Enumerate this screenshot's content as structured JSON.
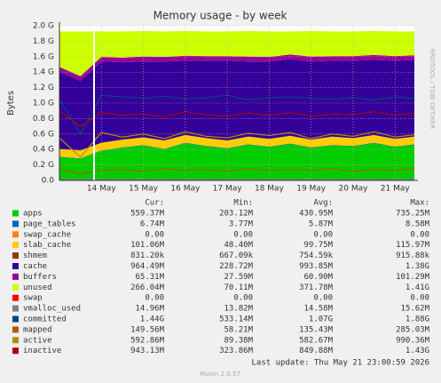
{
  "chart_data": {
    "type": "area",
    "title": "Memory usage - by week",
    "y_label": "Bytes",
    "side_label": "RRDTOOL / TOBI OETIKER",
    "x": [
      13.5,
      14,
      14.5,
      15,
      15.5,
      16,
      16.5,
      17,
      17.5,
      18,
      18.5,
      19,
      19.5,
      20,
      20.5,
      21,
      21.5,
      21.96
    ],
    "xlim": [
      13.5,
      21.96
    ],
    "xticks": [
      {
        "value": 14.5,
        "label": "14 May"
      },
      {
        "value": 15.5,
        "label": "15 May"
      },
      {
        "value": 16.5,
        "label": "16 May"
      },
      {
        "value": 17.5,
        "label": "17 May"
      },
      {
        "value": 18.5,
        "label": "18 May"
      },
      {
        "value": 19.5,
        "label": "19 May"
      },
      {
        "value": 20.5,
        "label": "20 May"
      },
      {
        "value": 21.5,
        "label": "21 May"
      }
    ],
    "ylim": [
      0,
      2.0
    ],
    "yticks": [
      {
        "value": 0,
        "label": "0.0"
      },
      {
        "value": 0.2,
        "label": "0.2 G"
      },
      {
        "value": 0.4,
        "label": "0.4 G"
      },
      {
        "value": 0.6,
        "label": "0.6 G"
      },
      {
        "value": 0.8,
        "label": "0.8 G"
      },
      {
        "value": 1.0,
        "label": "1.0 G"
      },
      {
        "value": 1.2,
        "label": "1.2 G"
      },
      {
        "value": 1.4,
        "label": "1.4 G"
      },
      {
        "value": 1.6,
        "label": "1.6 G"
      },
      {
        "value": 1.8,
        "label": "1.8 G"
      },
      {
        "value": 2.0,
        "label": "2.0 G"
      }
    ],
    "grid": true,
    "legend_headers": [
      "Cur:",
      "Min:",
      "Avg:",
      "Max:"
    ],
    "series": [
      {
        "name": "apps",
        "color": "#00CC00",
        "style": "stack",
        "values": [
          0.3,
          0.28,
          0.38,
          0.42,
          0.45,
          0.4,
          0.48,
          0.44,
          0.41,
          0.46,
          0.43,
          0.47,
          0.42,
          0.45,
          0.44,
          0.48,
          0.43,
          0.46
        ],
        "stats": [
          "559.37M",
          "203.12M",
          "430.95M",
          "735.25M"
        ]
      },
      {
        "name": "page_tables",
        "color": "#0066B3",
        "style": "stack",
        "values": [
          0.0065,
          0.0065,
          0.0065,
          0.0065,
          0.0065,
          0.0065,
          0.0065,
          0.0065,
          0.0065,
          0.0065,
          0.0065,
          0.0065,
          0.0065,
          0.0065,
          0.0065,
          0.0065,
          0.0065,
          0.0065
        ],
        "stats": [
          "6.74M",
          "3.77M",
          "5.87M",
          "8.58M"
        ]
      },
      {
        "name": "swap_cache",
        "color": "#FF8000",
        "style": "stack",
        "values": [
          0,
          0,
          0,
          0,
          0,
          0,
          0,
          0,
          0,
          0,
          0,
          0,
          0,
          0,
          0,
          0,
          0,
          0
        ],
        "stats": [
          "0.00",
          "0.00",
          "0.00",
          "0.00"
        ]
      },
      {
        "name": "slab_cache",
        "color": "#FFCC00",
        "style": "stack",
        "values": [
          0.1,
          0.1,
          0.1,
          0.1,
          0.1,
          0.11,
          0.1,
          0.1,
          0.1,
          0.1,
          0.1,
          0.1,
          0.1,
          0.11,
          0.1,
          0.1,
          0.1,
          0.1
        ],
        "stats": [
          "101.06M",
          "48.40M",
          "99.75M",
          "115.97M"
        ]
      },
      {
        "name": "shmem",
        "color": "#993300",
        "style": "stack",
        "values": [
          0.0008,
          0.0008,
          0.0008,
          0.0008,
          0.0008,
          0.0008,
          0.0008,
          0.0008,
          0.0008,
          0.0008,
          0.0008,
          0.0008,
          0.0008,
          0.0008,
          0.0008,
          0.0008,
          0.0008,
          0.0008
        ],
        "stats": [
          "831.20k",
          "667.09k",
          "754.59k",
          "915.88k"
        ]
      },
      {
        "name": "cache",
        "color": "#330099",
        "style": "stack",
        "values": [
          1.0,
          0.9,
          1.05,
          1.0,
          0.98,
          1.02,
          0.96,
          1.0,
          1.03,
          0.97,
          1.0,
          0.99,
          1.01,
          0.98,
          1.0,
          0.97,
          1.01,
          0.99
        ],
        "stats": [
          "964.49M",
          "228.72M",
          "993.85M",
          "1.38G"
        ]
      },
      {
        "name": "buffers",
        "color": "#990099",
        "style": "stack",
        "values": [
          0.06,
          0.06,
          0.06,
          0.06,
          0.065,
          0.06,
          0.065,
          0.06,
          0.06,
          0.065,
          0.06,
          0.06,
          0.065,
          0.06,
          0.06,
          0.065,
          0.06,
          0.06
        ],
        "stats": [
          "65.31M",
          "27.59M",
          "60.90M",
          "101.29M"
        ]
      },
      {
        "name": "unused",
        "color": "#CCFF00",
        "style": "stack",
        "values": [
          0.46,
          0.58,
          0.33,
          0.34,
          0.33,
          0.33,
          0.32,
          0.32,
          0.32,
          0.33,
          0.33,
          0.3,
          0.33,
          0.32,
          0.32,
          0.31,
          0.32,
          0.31
        ],
        "stats": [
          "266.04M",
          "70.11M",
          "371.78M",
          "1.41G"
        ]
      },
      {
        "name": "swap",
        "color": "#FF0000",
        "style": "stack",
        "values": [
          0,
          0,
          0,
          0,
          0,
          0,
          0,
          0,
          0,
          0,
          0,
          0,
          0,
          0,
          0,
          0,
          0,
          0
        ],
        "stats": [
          "0.00",
          "0.00",
          "0.00",
          "0.00"
        ]
      },
      {
        "name": "vmalloc_used",
        "color": "#808080",
        "style": "line",
        "values": [
          0.014,
          0.014,
          0.015,
          0.015,
          0.015,
          0.015,
          0.015,
          0.015,
          0.015,
          0.015,
          0.015,
          0.015,
          0.015,
          0.015,
          0.015,
          0.015,
          0.015,
          0.015
        ],
        "stats": [
          "14.96M",
          "13.82M",
          "14.58M",
          "15.62M"
        ]
      },
      {
        "name": "committed",
        "color": "#00487D",
        "style": "line",
        "values": [
          1.05,
          0.6,
          1.1,
          1.08,
          1.06,
          1.09,
          1.05,
          1.07,
          1.1,
          1.04,
          1.07,
          1.08,
          1.06,
          1.05,
          1.07,
          1.04,
          1.08,
          1.06
        ],
        "stats": [
          "1.44G",
          "533.14M",
          "1.07G",
          "1.88G"
        ]
      },
      {
        "name": "mapped",
        "color": "#B35A00",
        "style": "line",
        "values": [
          0.14,
          0.09,
          0.13,
          0.14,
          0.12,
          0.15,
          0.13,
          0.14,
          0.12,
          0.15,
          0.13,
          0.14,
          0.13,
          0.15,
          0.12,
          0.14,
          0.13,
          0.15
        ],
        "stats": [
          "149.56M",
          "58.21M",
          "135.43M",
          "285.03M"
        ]
      },
      {
        "name": "active",
        "color": "#B38F00",
        "style": "line",
        "values": [
          0.55,
          0.3,
          0.62,
          0.56,
          0.6,
          0.54,
          0.63,
          0.57,
          0.55,
          0.61,
          0.58,
          0.62,
          0.54,
          0.6,
          0.57,
          0.63,
          0.56,
          0.59
        ],
        "stats": [
          "592.86M",
          "89.38M",
          "582.67M",
          "990.36M"
        ]
      },
      {
        "name": "inactive",
        "color": "#B30000",
        "style": "line",
        "values": [
          0.9,
          0.7,
          0.88,
          0.84,
          0.86,
          0.82,
          0.89,
          0.85,
          0.83,
          0.87,
          0.84,
          0.88,
          0.83,
          0.86,
          0.85,
          0.89,
          0.84,
          0.87
        ],
        "stats": [
          "943.13M",
          "323.86M",
          "849.88M",
          "1.43G"
        ]
      }
    ],
    "footer": "Last update: Thu May 21 23:00:59 2026",
    "version": "Munin 2.0.57"
  }
}
